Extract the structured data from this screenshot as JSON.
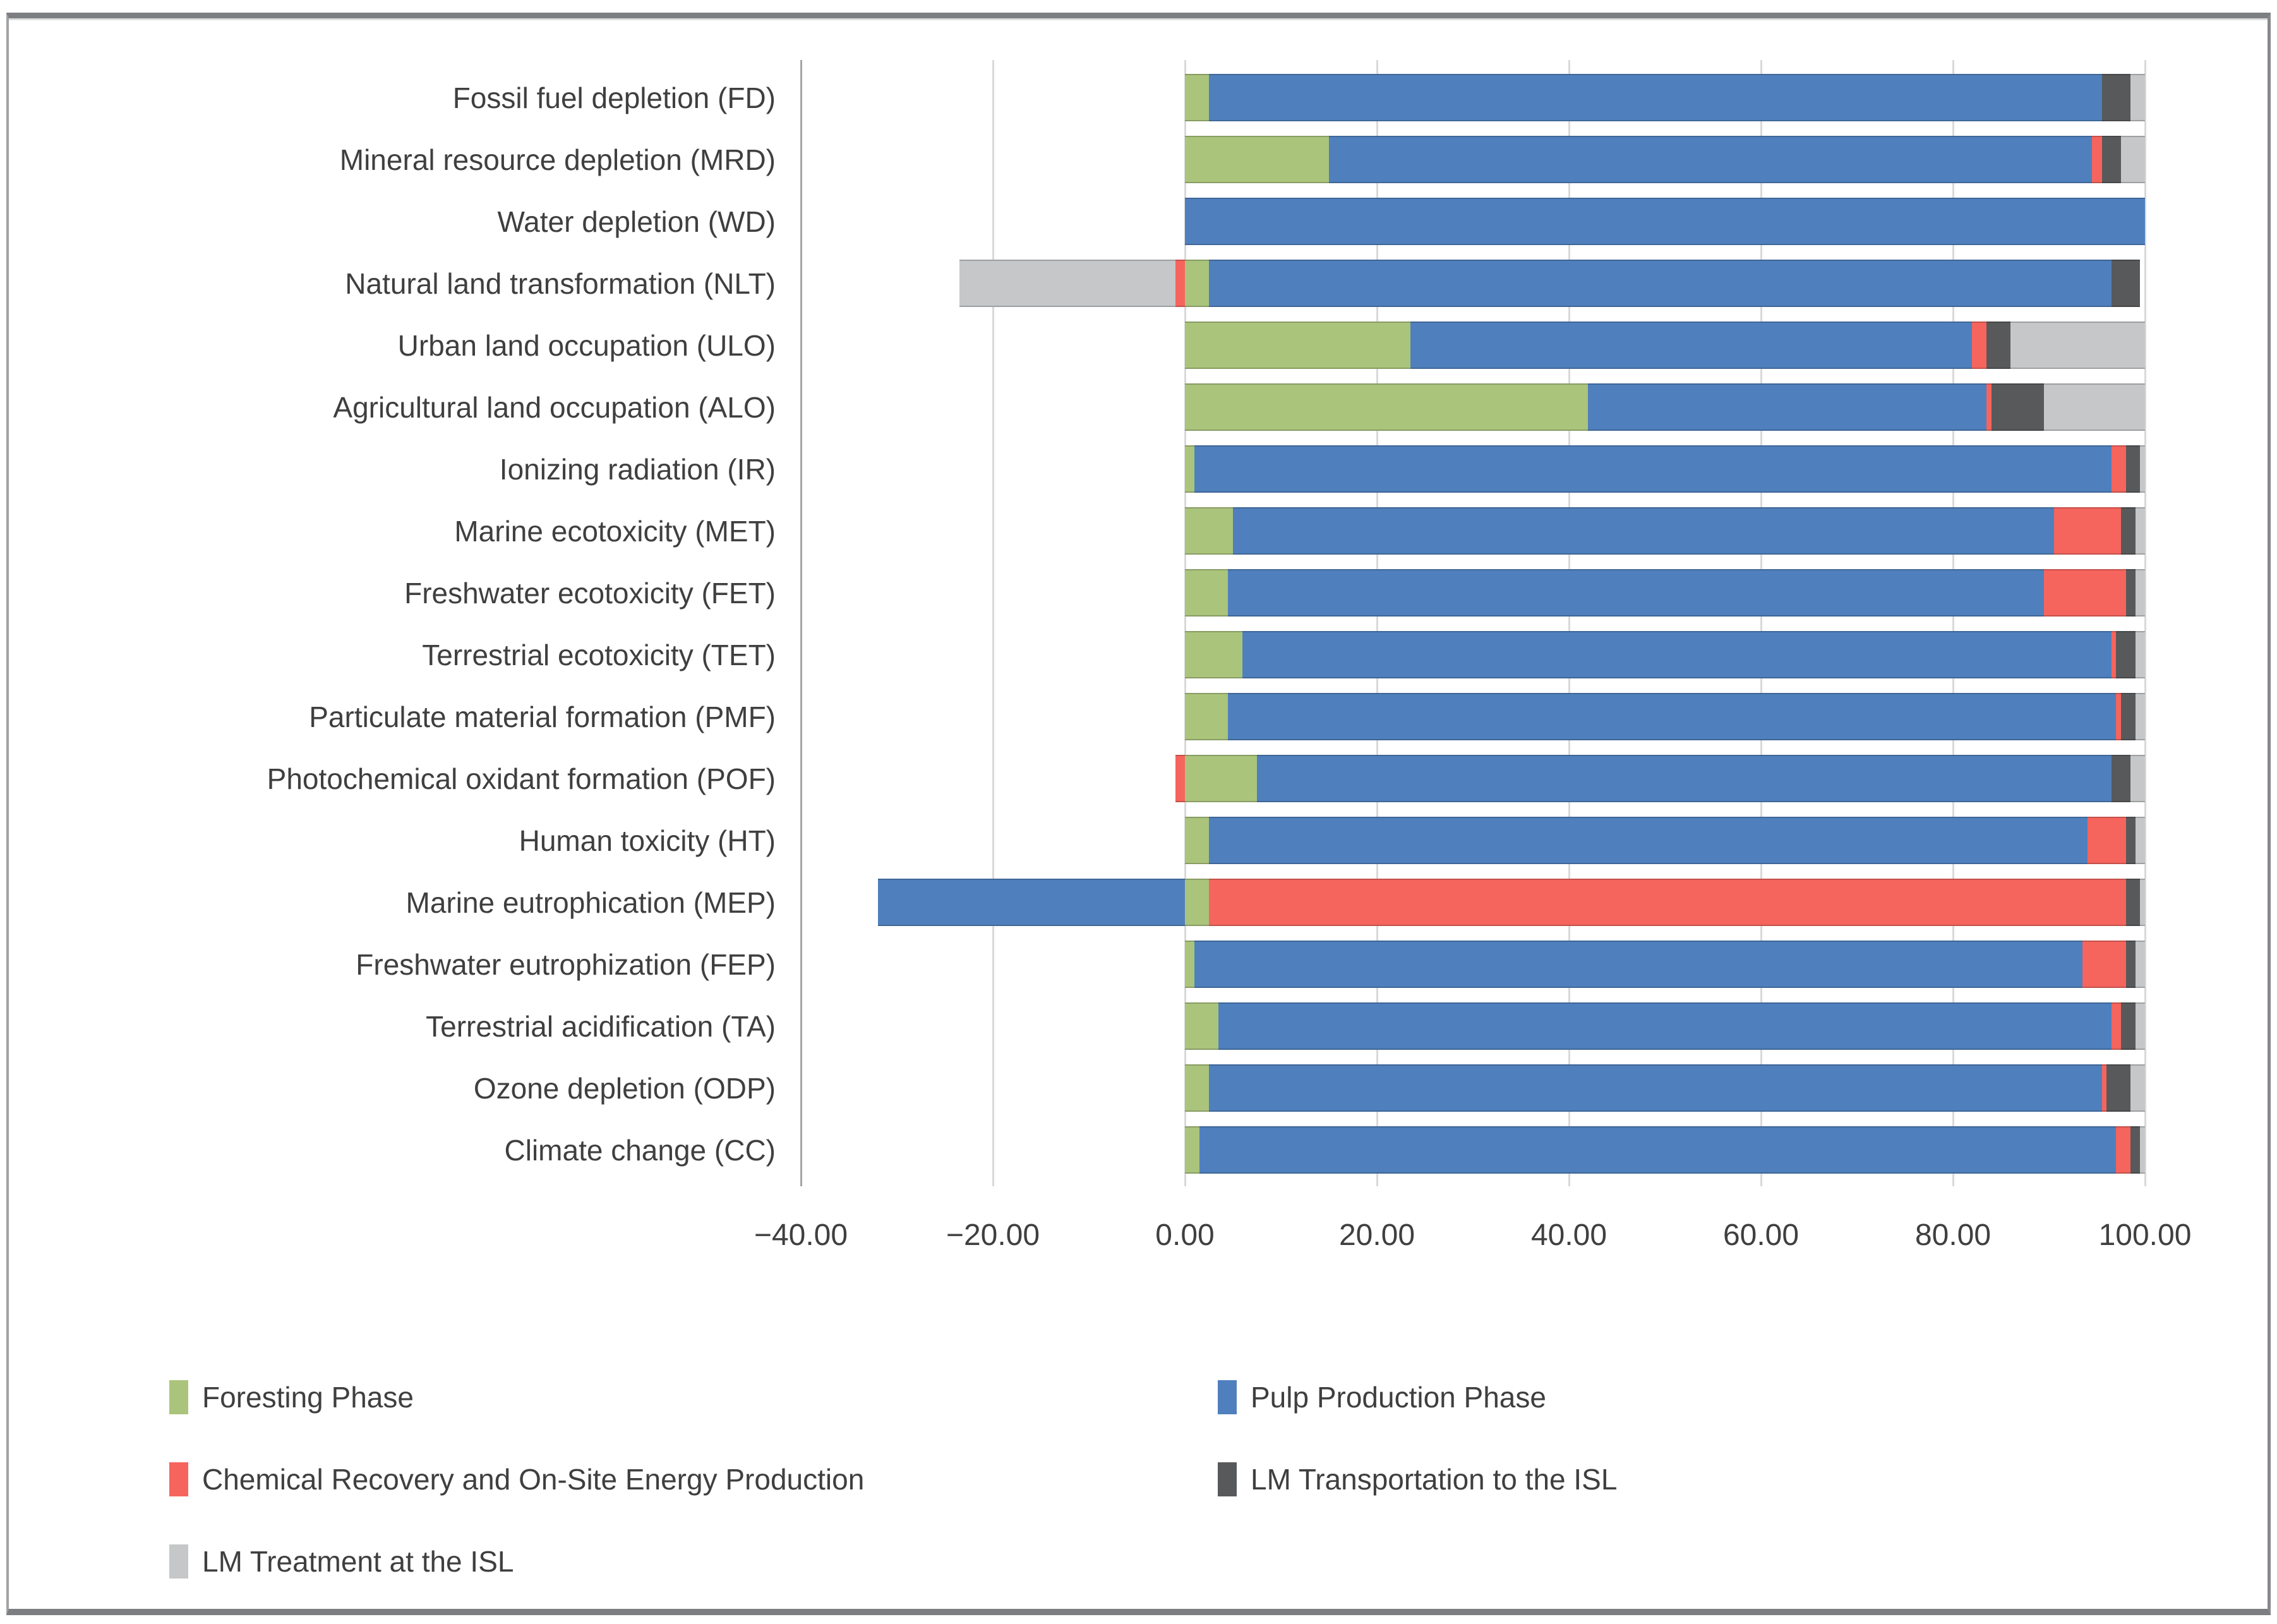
{
  "figure": {
    "background": "#ffffff",
    "frame_color": "#7c7e81"
  },
  "chart_data": {
    "type": "bar",
    "orientation": "horizontal",
    "stacked": true,
    "title": "",
    "xlabel": "",
    "ylabel": "",
    "xlim": [
      -40,
      100
    ],
    "grid": "vertical",
    "gridline_color": "#d9d9d9",
    "axis_line_color": "#a3a5a7",
    "text_color": "#3f3f3f",
    "legend_position": "bottom-two-columns",
    "x_ticks": [
      {
        "value": -40,
        "label": "−40.00"
      },
      {
        "value": -20,
        "label": "−20.00"
      },
      {
        "value": 0,
        "label": "0.00"
      },
      {
        "value": 20,
        "label": "20.00"
      },
      {
        "value": 40,
        "label": "40.00"
      },
      {
        "value": 60,
        "label": "60.00"
      },
      {
        "value": 80,
        "label": "80.00"
      },
      {
        "value": 100,
        "label": "100.00"
      }
    ],
    "categories": [
      "Fossil fuel depletion (FD)",
      "Mineral resource depletion (MRD)",
      "Water depletion (WD)",
      "Natural land transformation (NLT)",
      "Urban land occupation (ULO)",
      "Agricultural land occupation (ALO)",
      "Ionizing radiation (IR)",
      "Marine ecotoxicity (MET)",
      "Freshwater ecotoxicity (FET)",
      "Terrestrial ecotoxicity (TET)",
      "Particulate material formation (PMF)",
      "Photochemical oxidant formation (POF)",
      "Human toxicity (HT)",
      "Marine eutrophication (MEP)",
      "Freshwater eutrophization (FEP)",
      "Terrestrial acidification (TA)",
      "Ozone depletion (ODP)",
      "Climate change (CC)"
    ],
    "series": [
      {
        "name": "Foresting Phase",
        "color": "#abc47c",
        "values": [
          2.5,
          15,
          0,
          2.5,
          23.5,
          42,
          1,
          5,
          4.5,
          6,
          4.5,
          7.5,
          2.5,
          2.5,
          1,
          3.5,
          2.5,
          1.5
        ]
      },
      {
        "name": "Pulp Production Phase",
        "color": "#4f80bd",
        "values": [
          93,
          79.5,
          100,
          94,
          58.5,
          41.5,
          95.5,
          85.5,
          85,
          90.5,
          92.5,
          89,
          91.5,
          -32,
          92.5,
          93,
          93,
          95.5
        ]
      },
      {
        "name": "Chemical Recovery and On-Site Energy Production",
        "color": "#f5655d",
        "values": [
          0,
          1,
          0,
          -1,
          1.5,
          0.5,
          1.5,
          7,
          8.5,
          0.5,
          0.5,
          -1,
          4,
          95.5,
          4.5,
          1,
          0.5,
          1.5
        ]
      },
      {
        "name": "LM Transportation to the ISL",
        "color": "#58595b",
        "values": [
          3,
          2,
          0,
          3,
          2.5,
          5.5,
          1.5,
          1.5,
          1,
          2,
          1.5,
          2,
          1,
          1.5,
          1,
          1.5,
          2.5,
          1
        ]
      },
      {
        "name": "LM Treatment at the ISL",
        "color": "#c6c7c8",
        "values": [
          1.5,
          2.5,
          0,
          -22.5,
          14,
          10.5,
          0.5,
          1,
          1,
          1,
          1,
          1.5,
          1,
          0.5,
          1,
          1,
          1.5,
          0.5
        ]
      }
    ]
  }
}
